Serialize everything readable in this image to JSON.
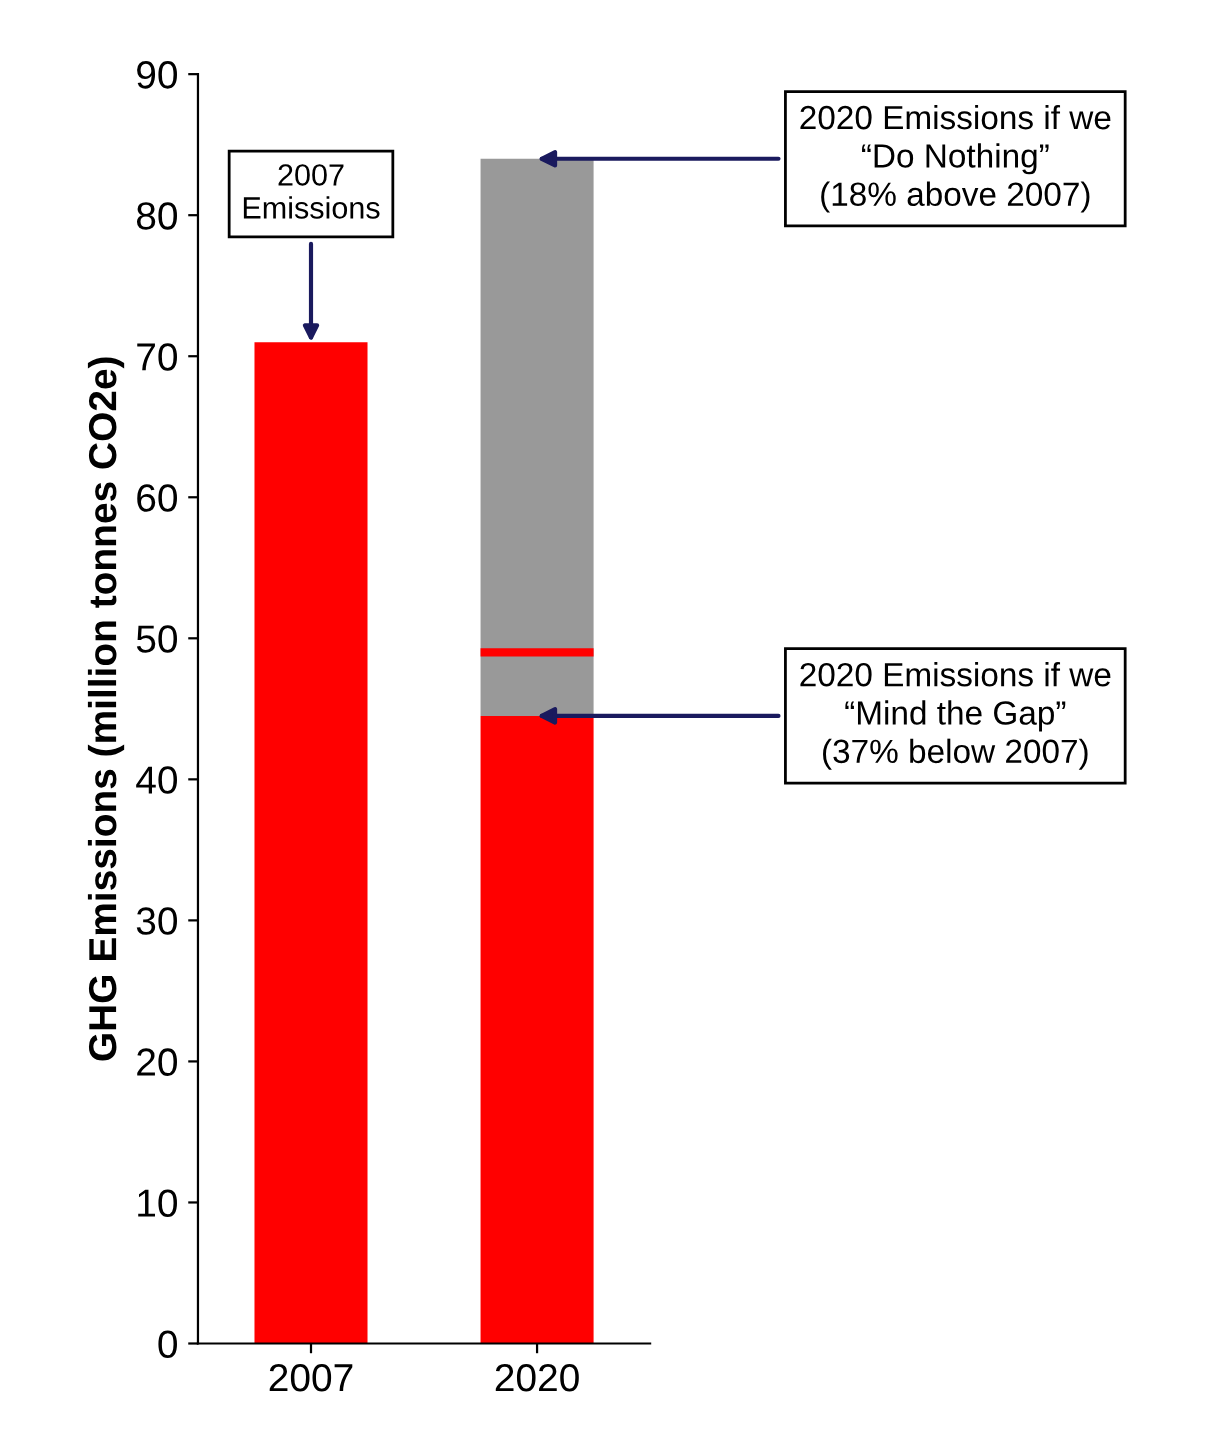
{
  "chart_data": {
    "type": "bar",
    "stacked": true,
    "categories": [
      "2007",
      "2020"
    ],
    "series": [
      {
        "color": "#ff0000",
        "values": [
          71,
          44.5
        ]
      },
      {
        "color": "#999999",
        "values": [
          null,
          39.5
        ]
      }
    ],
    "ylabel": "GHG Emissions (million tonnes CO2e)",
    "ylim": [
      0,
      90
    ],
    "yticks": [
      0,
      10,
      20,
      30,
      40,
      50,
      60,
      70,
      80,
      90
    ],
    "grid": false,
    "ref_lines": [
      {
        "axis": "y",
        "value": 49,
        "color": "#ff0000",
        "line_style": "solid"
      }
    ],
    "annotations": [
      {
        "text": "2007\nEmissions",
        "x": "2007",
        "y": 71
      },
      {
        "text": "2020 Emissions if we\n“Do Nothing”\n(18% above 2007)",
        "x": "2020",
        "y": 84
      },
      {
        "text": "2020 Emissions if we\n“Mind the Gap”\n(37% below 2007)",
        "x": "2020",
        "y": 44.5
      }
    ]
  }
}
